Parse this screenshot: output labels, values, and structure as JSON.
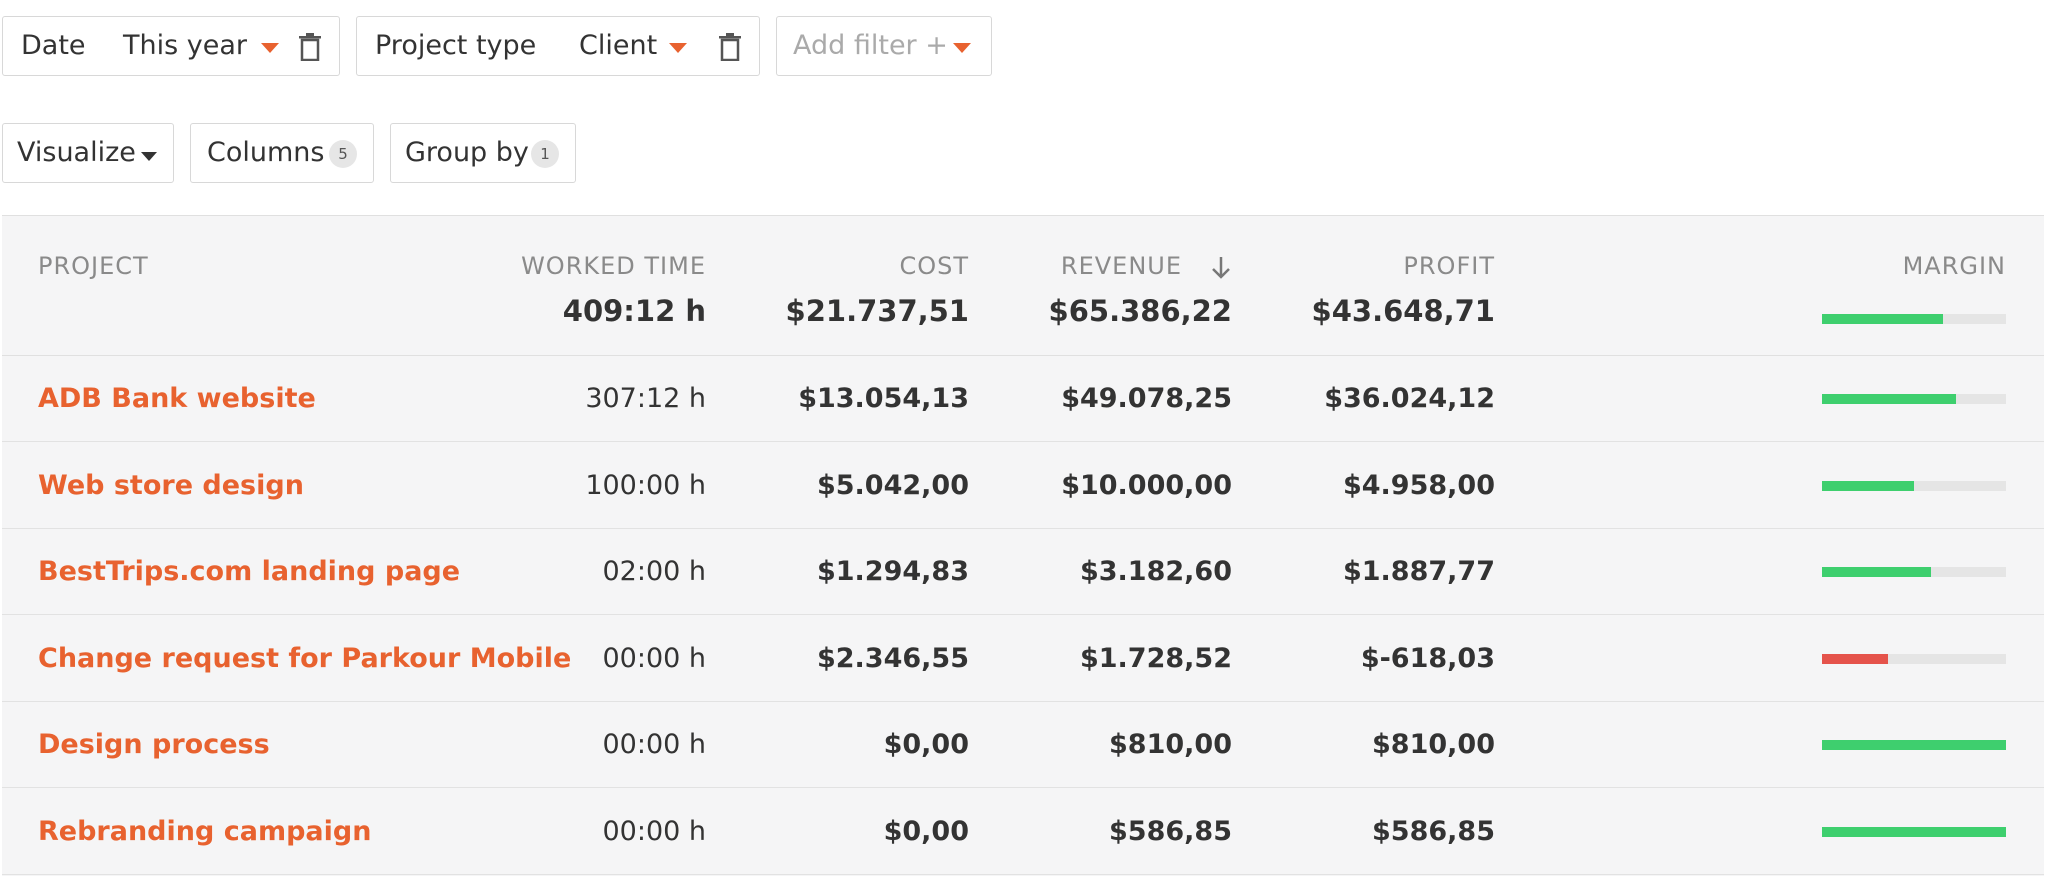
{
  "filters": {
    "date": {
      "label": "Date",
      "value": "This year"
    },
    "project_type": {
      "label": "Project type",
      "value": "Client"
    },
    "add_filter": {
      "placeholder": "Add filter +"
    }
  },
  "toolbar": {
    "visualize_label": "Visualize",
    "columns_label": "Columns",
    "columns_count": "5",
    "group_by_label": "Group by",
    "group_by_count": "1"
  },
  "colors": {
    "accent": "#e8622f",
    "positive": "#3ecf6e",
    "negative": "#e5534b"
  },
  "table": {
    "headers": {
      "project": "PROJECT",
      "worked_time": "WORKED TIME",
      "cost": "COST",
      "revenue": "REVENUE",
      "profit": "PROFIT",
      "margin": "MARGIN"
    },
    "sort_icon": "arrow-down-icon",
    "totals": {
      "worked_time": "409:12 h",
      "cost": "$21.737,51",
      "revenue": "$65.386,22",
      "profit": "$43.648,71",
      "margin_fraction": 0.66,
      "margin_status": "positive"
    },
    "rows": [
      {
        "project": "ADB Bank website",
        "worked_time": "307:12 h",
        "cost": "$13.054,13",
        "revenue": "$49.078,25",
        "profit": "$36.024,12",
        "margin_fraction": 0.73,
        "margin_status": "positive"
      },
      {
        "project": "Web store design",
        "worked_time": "100:00 h",
        "cost": "$5.042,00",
        "revenue": "$10.000,00",
        "profit": "$4.958,00",
        "margin_fraction": 0.5,
        "margin_status": "positive"
      },
      {
        "project": "BestTrips.com landing page",
        "worked_time": "02:00 h",
        "cost": "$1.294,83",
        "revenue": "$3.182,60",
        "profit": "$1.887,77",
        "margin_fraction": 0.59,
        "margin_status": "positive"
      },
      {
        "project": "Change request for Parkour Mobile",
        "worked_time": "00:00 h",
        "cost": "$2.346,55",
        "revenue": "$1.728,52",
        "profit": "$-618,03",
        "margin_fraction": 0.36,
        "margin_status": "negative"
      },
      {
        "project": "Design process",
        "worked_time": "00:00 h",
        "cost": "$0,00",
        "revenue": "$810,00",
        "profit": "$810,00",
        "margin_fraction": 1.0,
        "margin_status": "positive"
      },
      {
        "project": "Rebranding campaign",
        "worked_time": "00:00 h",
        "cost": "$0,00",
        "revenue": "$586,85",
        "profit": "$586,85",
        "margin_fraction": 1.0,
        "margin_status": "positive"
      }
    ]
  }
}
